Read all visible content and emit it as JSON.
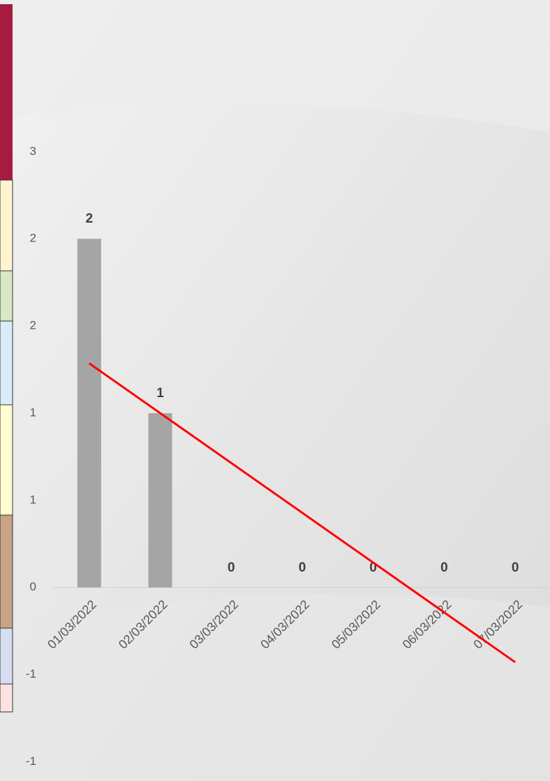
{
  "chart_data": {
    "type": "bar",
    "categories": [
      "01/03/2022",
      "02/03/2022",
      "03/03/2022",
      "04/03/2022",
      "05/03/2022",
      "06/03/2022",
      "07/03/2022"
    ],
    "values": [
      2,
      1,
      0,
      0,
      0,
      0,
      0
    ],
    "color": "#a5a5a5",
    "ylim": [
      -1.11,
      3.37
    ],
    "yticks": [
      {
        "value": 2.5,
        "label": "3"
      },
      2,
      {
        "value": 1.5,
        "label": "2"
      },
      1,
      {
        "value": 0.5,
        "label": "1"
      },
      0,
      {
        "value": -0.5,
        "label": "-1"
      },
      {
        "value": -1,
        "label": "-1"
      }
    ],
    "trendline": "linear",
    "trendline_color": "#ff0000",
    "grid": false
  }
}
